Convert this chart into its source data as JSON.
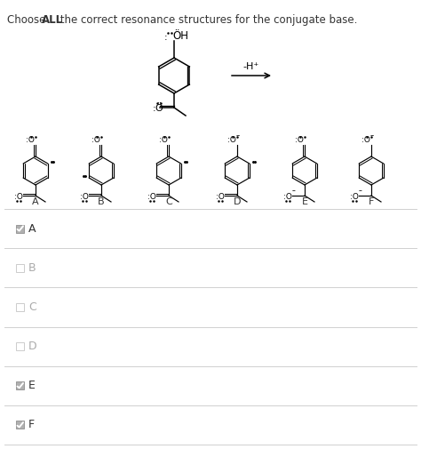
{
  "title_normal1": "Choose ",
  "title_bold": "ALL",
  "title_normal2": " the correct resonance structures for the conjugate base.",
  "background_color": "#ffffff",
  "checkbox_items": [
    {
      "label": "A",
      "checked": true
    },
    {
      "label": "B",
      "checked": false
    },
    {
      "label": "C",
      "checked": false
    },
    {
      "label": "D",
      "checked": false
    },
    {
      "label": "E",
      "checked": true
    },
    {
      "label": "F",
      "checked": true
    }
  ],
  "structure_labels": [
    "A",
    "B",
    "C",
    "D",
    "E",
    "F"
  ],
  "arrow_label": "-H⁺",
  "line_color": "#d0d0d0",
  "text_color": "#333333",
  "gray_text": "#aaaaaa",
  "fig_w": 4.74,
  "fig_h": 5.05,
  "dpi": 100
}
